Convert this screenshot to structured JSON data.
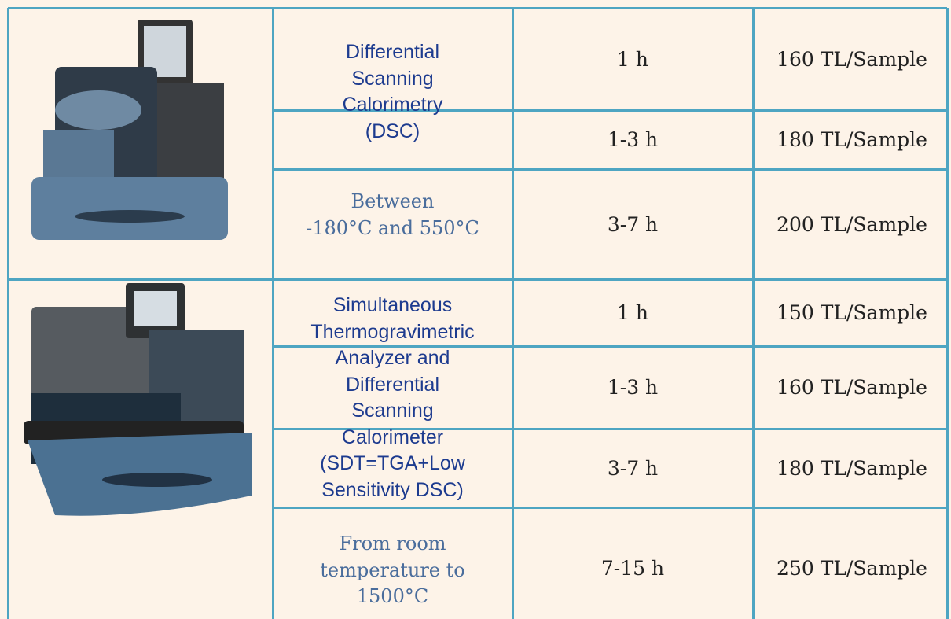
{
  "table": {
    "rows": [
      {
        "instrument": {
          "name_lines": [
            "Differential",
            "Scanning",
            "Calorimetry",
            "(DSC)"
          ],
          "range_lines": [
            "Between",
            "-180°C and 550°C"
          ]
        },
        "options": [
          {
            "duration": "1 h",
            "price": "160 TL/Sample"
          },
          {
            "duration": "1-3 h",
            "price": "180 TL/Sample"
          },
          {
            "duration": "3-7 h",
            "price": "200 TL/Sample"
          }
        ]
      },
      {
        "instrument": {
          "name_lines": [
            "Simultaneous",
            "Thermogravimetric",
            "Analyzer and",
            "Differential",
            "Scanning",
            "Calorimeter",
            "(SDT=TGA+Low",
            "Sensitivity DSC)"
          ],
          "range_lines": [
            "From room",
            "temperature to",
            "1500°C"
          ]
        },
        "options": [
          {
            "duration": "1 h",
            "price": "150 TL/Sample"
          },
          {
            "duration": "1-3 h",
            "price": "160 TL/Sample"
          },
          {
            "duration": "3-7 h",
            "price": "180 TL/Sample"
          },
          {
            "duration": "7-15 h",
            "price": "250 TL/Sample"
          }
        ]
      }
    ]
  }
}
